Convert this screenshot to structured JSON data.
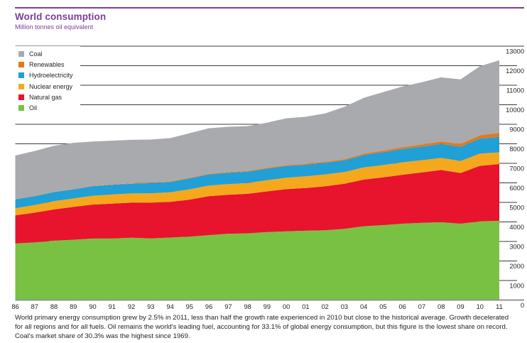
{
  "header": {
    "title": "World consumption",
    "subtitle": "Million tonnes oil equivalent"
  },
  "footer": {
    "text": "World primary energy consumption grew by 2.5% in 2011, less than half the growth rate experienced in 2010 but close to the historical average. Growth decelerated for all regions and for all fuels. Oil remains the world's leading fuel, accounting for 33.1% of global energy consumption, but this figure is the lowest share on record. Coal's market share of 30.3% was the highest since 1969."
  },
  "colors": {
    "accent_purple": "#7d3f98",
    "grid_line": "#3c3a3b",
    "baseline": "#929497",
    "axis_text": "#231f20"
  },
  "chart_data": {
    "type": "area",
    "stacked": true,
    "title": "World consumption",
    "ylabel": "Million tonnes oil equivalent",
    "ylim": [
      0,
      13000
    ],
    "yticks": [
      0,
      1000,
      2000,
      3000,
      4000,
      5000,
      6000,
      7000,
      8000,
      9000,
      10000,
      11000,
      12000,
      13000
    ],
    "grid": true,
    "legend_position": "top-left",
    "x_labels": [
      "86",
      "87",
      "88",
      "89",
      "90",
      "91",
      "92",
      "93",
      "94",
      "95",
      "96",
      "97",
      "98",
      "99",
      "00",
      "01",
      "02",
      "03",
      "04",
      "05",
      "06",
      "07",
      "08",
      "09",
      "10",
      "11"
    ],
    "legend_order": [
      "Coal",
      "Renewables",
      "Hydroelectricity",
      "Nuclear energy",
      "Natural gas",
      "Oil"
    ],
    "series": [
      {
        "name": "Oil",
        "color": "#79c143",
        "values": [
          2893,
          2949,
          3039,
          3088,
          3149,
          3148,
          3191,
          3157,
          3200,
          3246,
          3323,
          3397,
          3414,
          3481,
          3519,
          3548,
          3575,
          3643,
          3778,
          3835,
          3910,
          3953,
          3986,
          3908,
          4028,
          4059
        ]
      },
      {
        "name": "Natural gas",
        "color": "#e8132d",
        "values": [
          1444,
          1524,
          1602,
          1679,
          1738,
          1785,
          1796,
          1823,
          1825,
          1897,
          1993,
          1997,
          2025,
          2083,
          2159,
          2191,
          2247,
          2315,
          2390,
          2449,
          2504,
          2586,
          2672,
          2597,
          2843,
          2906
        ]
      },
      {
        "name": "Nuclear energy",
        "color": "#f6a81c",
        "values": [
          364,
          389,
          420,
          434,
          453,
          469,
          472,
          486,
          492,
          526,
          548,
          541,
          550,
          572,
          584,
          601,
          611,
          598,
          625,
          627,
          636,
          622,
          619,
          614,
          626,
          599
        ]
      },
      {
        "name": "Hydroelectricity",
        "color": "#219fd7",
        "values": [
          451,
          457,
          469,
          467,
          490,
          500,
          498,
          521,
          528,
          561,
          573,
          582,
          586,
          593,
          601,
          587,
          592,
          596,
          634,
          662,
          688,
          697,
          718,
          736,
          776,
          792
        ]
      },
      {
        "name": "Renewables",
        "color": "#e87817",
        "values": [
          11,
          12,
          13,
          15,
          17,
          18,
          20,
          21,
          23,
          25,
          28,
          31,
          34,
          38,
          43,
          46,
          52,
          59,
          67,
          77,
          89,
          104,
          121,
          138,
          168,
          195
        ]
      },
      {
        "name": "Coal",
        "color": "#a8aaad",
        "values": [
          2238,
          2301,
          2358,
          2368,
          2270,
          2240,
          2226,
          2210,
          2224,
          2286,
          2330,
          2323,
          2295,
          2316,
          2399,
          2413,
          2476,
          2682,
          2858,
          2994,
          3112,
          3194,
          3286,
          3305,
          3532,
          3724
        ]
      }
    ]
  }
}
